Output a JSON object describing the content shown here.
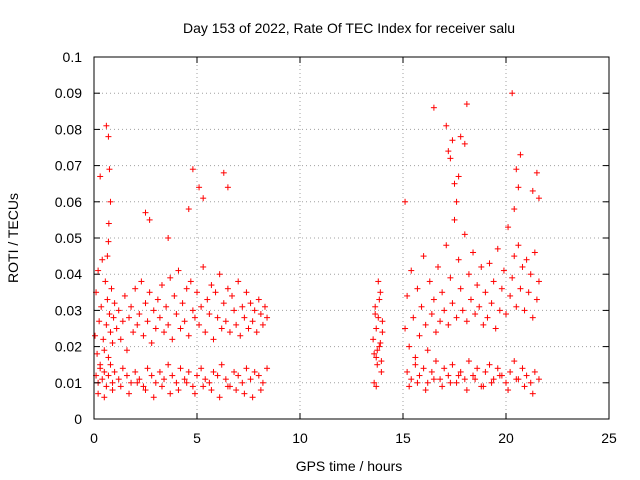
{
  "chart_data": {
    "type": "scatter",
    "title": "Day 153 of 2022, Rate Of TEC Index for receiver salu",
    "xlabel": "GPS time / hours",
    "ylabel": "ROTI / TECUs",
    "xlim": [
      0,
      25
    ],
    "ylim": [
      0,
      0.1
    ],
    "x_ticks": [
      0,
      5,
      10,
      15,
      20,
      25
    ],
    "x_tick_labels": [
      "0",
      "5",
      "10",
      "15",
      "20",
      "25"
    ],
    "y_ticks": [
      0,
      0.01,
      0.02,
      0.03,
      0.04,
      0.05,
      0.06,
      0.07,
      0.08,
      0.09,
      0.1
    ],
    "y_tick_labels": [
      "0",
      "0.01",
      "0.02",
      "0.03",
      "0.04",
      "0.05",
      "0.06",
      "0.07",
      "0.08",
      "0.09",
      "0.1"
    ],
    "grid": true,
    "marker": "+",
    "color": "#ff0000",
    "series": [
      {
        "x": [
          0.05,
          0.1,
          0.15,
          0.2,
          0.25,
          0.3,
          0.35,
          0.4,
          0.45,
          0.5,
          0.55,
          0.6,
          0.65,
          0.7,
          0.75,
          0.8,
          0.85,
          0.9,
          0.95,
          1.0,
          1.1,
          1.2,
          1.3,
          1.4,
          1.5,
          1.6,
          1.7,
          1.8,
          1.9,
          2.0,
          2.1,
          2.2,
          2.3,
          2.4,
          2.5,
          2.6,
          2.7,
          2.8,
          2.9,
          3.0,
          3.1,
          3.2,
          3.3,
          3.4,
          3.5,
          3.6,
          3.7,
          3.8,
          3.9,
          4.0,
          4.1,
          4.2,
          4.3,
          4.4,
          4.5,
          4.6,
          4.7,
          4.8,
          4.9,
          5.0,
          5.1,
          5.2,
          5.3,
          5.4,
          5.5,
          5.6,
          5.7,
          5.8,
          5.9,
          6.0,
          6.1,
          6.2,
          6.3,
          6.4,
          6.5,
          6.6,
          6.7,
          6.8,
          6.9,
          7.0,
          7.1,
          7.2,
          7.3,
          7.4,
          7.5,
          7.6,
          7.7,
          7.8,
          7.9,
          8.0,
          8.1,
          8.2,
          8.3,
          8.4,
          0.1,
          0.2,
          0.3,
          0.4,
          0.5,
          0.6,
          0.7,
          0.8,
          0.9,
          1.0,
          1.2,
          1.4,
          1.6,
          1.8,
          2.0,
          2.2,
          2.4,
          2.6,
          2.8,
          3.0,
          3.2,
          3.4,
          3.6,
          3.8,
          4.0,
          4.2,
          4.4,
          4.6,
          4.8,
          5.0,
          5.2,
          5.4,
          5.6,
          5.8,
          6.0,
          6.2,
          6.4,
          6.6,
          6.8,
          7.0,
          7.2,
          7.4,
          7.6,
          7.8,
          8.0,
          8.2,
          8.4,
          0.3,
          0.6,
          0.7,
          0.75,
          0.8,
          0.72,
          0.65,
          0.7,
          2.5,
          2.7,
          3.6,
          4.6,
          4.8,
          5.1,
          5.3,
          6.3,
          6.5,
          0.2,
          0.5,
          0.9,
          1.3,
          1.7,
          2.1,
          2.5,
          2.9,
          3.3,
          3.7,
          4.1,
          4.5,
          4.9,
          5.3,
          5.7,
          6.1,
          6.5,
          6.9,
          7.3,
          7.7,
          8.1,
          13.55,
          13.6,
          13.65,
          13.7,
          13.75,
          13.8,
          13.85,
          13.9,
          13.95,
          14.0,
          13.6,
          13.7,
          13.8,
          13.9,
          14.0,
          13.7,
          13.85,
          13.75,
          13.65,
          13.95,
          15.1,
          15.2,
          15.3,
          15.4,
          15.5,
          15.6,
          15.7,
          15.8,
          15.9,
          16.0,
          16.1,
          16.2,
          16.3,
          16.4,
          16.5,
          16.6,
          16.7,
          16.8,
          16.9,
          17.0,
          17.1,
          17.2,
          17.3,
          17.4,
          17.5,
          17.6,
          17.7,
          17.8,
          17.9,
          18.0,
          18.1,
          18.2,
          18.3,
          18.4,
          18.5,
          18.6,
          18.7,
          18.8,
          18.9,
          19.0,
          19.1,
          19.2,
          19.3,
          19.4,
          19.5,
          19.6,
          19.7,
          19.8,
          19.9,
          20.0,
          20.1,
          20.2,
          20.3,
          20.4,
          20.5,
          20.6,
          20.7,
          20.8,
          20.9,
          21.0,
          21.1,
          21.2,
          21.3,
          21.4,
          21.5,
          21.6,
          15.2,
          15.4,
          15.6,
          15.8,
          16.0,
          16.2,
          16.4,
          16.6,
          16.8,
          17.0,
          17.2,
          17.4,
          17.6,
          17.8,
          18.0,
          18.2,
          18.4,
          18.6,
          18.8,
          19.0,
          19.2,
          19.4,
          19.6,
          19.8,
          20.0,
          20.2,
          20.4,
          20.6,
          20.8,
          21.0,
          21.2,
          21.4,
          21.6,
          15.1,
          16.5,
          17.1,
          17.2,
          17.4,
          17.6,
          17.7,
          17.8,
          18.1,
          20.3,
          20.4,
          20.5,
          20.6,
          20.7,
          21.3,
          21.5,
          21.6,
          17.3,
          17.5,
          18.0,
          15.3,
          15.7,
          16.1,
          16.5,
          16.9,
          17.3,
          17.7,
          18.1,
          18.5,
          18.9,
          19.3,
          19.7,
          20.1,
          20.5,
          20.9,
          21.3
        ],
        "y": [
          0.023,
          0.035,
          0.018,
          0.041,
          0.027,
          0.015,
          0.031,
          0.044,
          0.022,
          0.019,
          0.038,
          0.026,
          0.033,
          0.017,
          0.029,
          0.024,
          0.036,
          0.021,
          0.028,
          0.032,
          0.025,
          0.03,
          0.022,
          0.027,
          0.034,
          0.019,
          0.028,
          0.031,
          0.024,
          0.036,
          0.026,
          0.029,
          0.038,
          0.023,
          0.032,
          0.027,
          0.035,
          0.021,
          0.03,
          0.025,
          0.033,
          0.028,
          0.037,
          0.024,
          0.031,
          0.026,
          0.039,
          0.022,
          0.034,
          0.029,
          0.041,
          0.025,
          0.032,
          0.027,
          0.036,
          0.023,
          0.038,
          0.03,
          0.028,
          0.035,
          0.026,
          0.031,
          0.042,
          0.024,
          0.033,
          0.029,
          0.037,
          0.022,
          0.035,
          0.028,
          0.04,
          0.025,
          0.032,
          0.027,
          0.036,
          0.024,
          0.034,
          0.03,
          0.026,
          0.038,
          0.023,
          0.031,
          0.028,
          0.035,
          0.025,
          0.032,
          0.027,
          0.03,
          0.024,
          0.033,
          0.029,
          0.026,
          0.031,
          0.028,
          0.012,
          0.01,
          0.014,
          0.011,
          0.013,
          0.009,
          0.012,
          0.015,
          0.01,
          0.013,
          0.011,
          0.014,
          0.012,
          0.01,
          0.013,
          0.011,
          0.009,
          0.014,
          0.012,
          0.01,
          0.013,
          0.011,
          0.015,
          0.012,
          0.01,
          0.014,
          0.011,
          0.013,
          0.009,
          0.012,
          0.014,
          0.011,
          0.01,
          0.013,
          0.012,
          0.015,
          0.011,
          0.009,
          0.013,
          0.012,
          0.01,
          0.014,
          0.011,
          0.013,
          0.012,
          0.01,
          0.014,
          0.067,
          0.081,
          0.078,
          0.069,
          0.06,
          0.054,
          0.045,
          0.049,
          0.057,
          0.055,
          0.05,
          0.058,
          0.069,
          0.064,
          0.061,
          0.068,
          0.064,
          0.007,
          0.006,
          0.008,
          0.009,
          0.007,
          0.01,
          0.008,
          0.006,
          0.009,
          0.007,
          0.008,
          0.01,
          0.007,
          0.009,
          0.008,
          0.006,
          0.009,
          0.008,
          0.007,
          0.006,
          0.008,
          0.022,
          0.018,
          0.031,
          0.025,
          0.015,
          0.028,
          0.02,
          0.035,
          0.013,
          0.024,
          0.01,
          0.017,
          0.038,
          0.021,
          0.027,
          0.009,
          0.033,
          0.019,
          0.029,
          0.016,
          0.025,
          0.034,
          0.02,
          0.041,
          0.028,
          0.017,
          0.036,
          0.023,
          0.031,
          0.045,
          0.026,
          0.019,
          0.038,
          0.029,
          0.033,
          0.024,
          0.042,
          0.027,
          0.035,
          0.03,
          0.048,
          0.026,
          0.039,
          0.032,
          0.055,
          0.028,
          0.044,
          0.036,
          0.03,
          0.051,
          0.027,
          0.04,
          0.033,
          0.046,
          0.029,
          0.037,
          0.031,
          0.042,
          0.026,
          0.035,
          0.028,
          0.043,
          0.032,
          0.038,
          0.025,
          0.047,
          0.03,
          0.036,
          0.041,
          0.029,
          0.053,
          0.034,
          0.039,
          0.045,
          0.031,
          0.048,
          0.036,
          0.042,
          0.03,
          0.044,
          0.035,
          0.04,
          0.028,
          0.046,
          0.033,
          0.038,
          0.013,
          0.011,
          0.015,
          0.012,
          0.014,
          0.01,
          0.013,
          0.016,
          0.011,
          0.014,
          0.012,
          0.015,
          0.01,
          0.013,
          0.011,
          0.016,
          0.012,
          0.014,
          0.009,
          0.013,
          0.015,
          0.011,
          0.014,
          0.012,
          0.01,
          0.013,
          0.016,
          0.011,
          0.014,
          0.012,
          0.01,
          0.013,
          0.011,
          0.06,
          0.086,
          0.081,
          0.074,
          0.077,
          0.06,
          0.067,
          0.078,
          0.087,
          0.09,
          0.058,
          0.069,
          0.064,
          0.073,
          0.063,
          0.068,
          0.061,
          0.072,
          0.065,
          0.076,
          0.009,
          0.01,
          0.008,
          0.011,
          0.009,
          0.01,
          0.012,
          0.008,
          0.011,
          0.009,
          0.01,
          0.012,
          0.008,
          0.011,
          0.009,
          0.007
        ]
      }
    ]
  }
}
